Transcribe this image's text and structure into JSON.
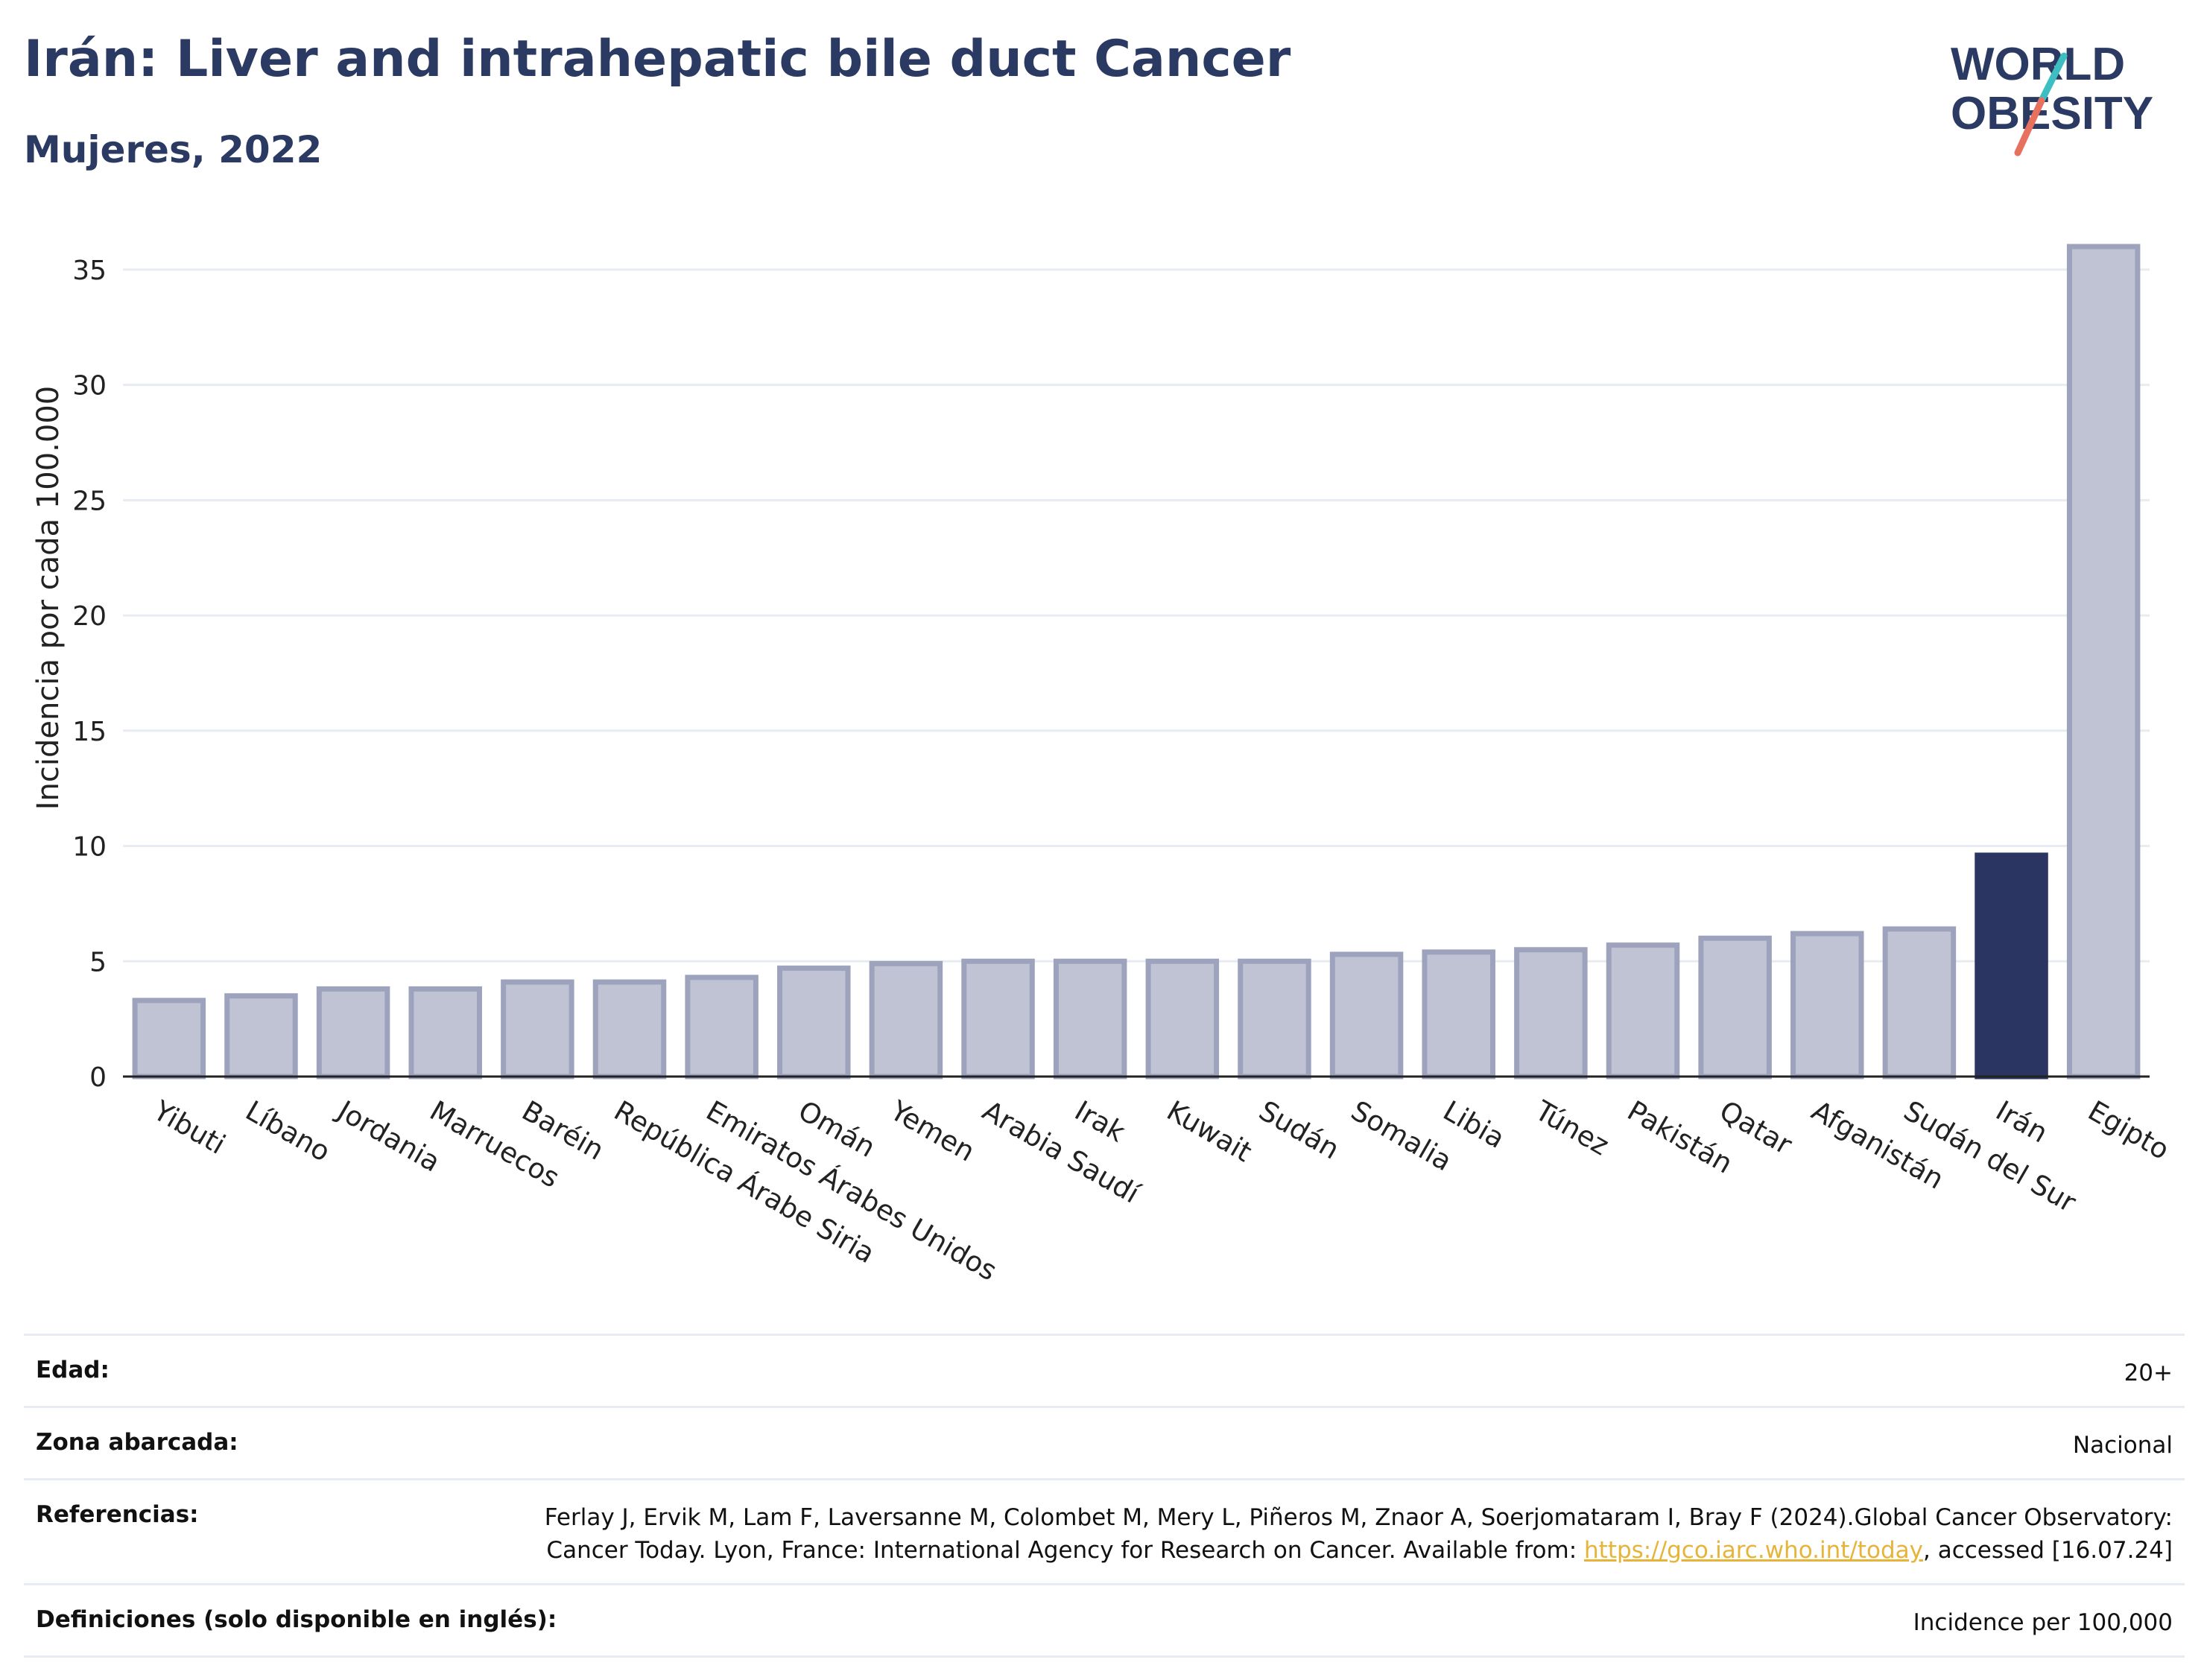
{
  "header": {
    "title": "Irán: Liver and intrahepatic bile duct Cancer",
    "subtitle": "Mujeres, 2022"
  },
  "logo": {
    "line1": "WORLD",
    "line2": "OBESITY",
    "colors": {
      "text": "#2b3a63",
      "slash_top": "#3dbfc1",
      "slash_bottom": "#e8705f"
    }
  },
  "colors": {
    "bar_fill": "#c0c3d3",
    "bar_stroke": "#9ea3bd",
    "highlight": "#2b3561",
    "grid": "#e6ecf2",
    "axis": "#222222"
  },
  "chart_data": {
    "type": "bar",
    "title": "",
    "xlabel": "",
    "ylabel": "Incidencia por cada 100.000",
    "ylim": [
      0,
      37
    ],
    "yticks": [
      0,
      5,
      10,
      15,
      20,
      25,
      30,
      35
    ],
    "grid": true,
    "highlight": "Irán",
    "categories": [
      "Yibuti",
      "Líbano",
      "Jordania",
      "Marruecos",
      "Baréin",
      "República Árabe Siria",
      "Emiratos Árabes Unidos",
      "Omán",
      "Yemen",
      "Arabia Saudí",
      "Irak",
      "Kuwait",
      "Sudán",
      "Somalia",
      "Libia",
      "Túnez",
      "Pakistán",
      "Qatar",
      "Afganistán",
      "Sudán del Sur",
      "Irán",
      "Egipto"
    ],
    "values": [
      3.3,
      3.5,
      3.8,
      3.8,
      4.1,
      4.1,
      4.3,
      4.7,
      4.9,
      5.0,
      5.0,
      5.0,
      5.0,
      5.3,
      5.4,
      5.5,
      5.7,
      6.0,
      6.2,
      6.4,
      9.6,
      36.0
    ]
  },
  "meta": {
    "rows": [
      {
        "label": "Edad:",
        "value": "20+"
      },
      {
        "label": "Zona abarcada:",
        "value": "Nacional"
      },
      {
        "label": "Referencias:",
        "value_before": "Ferlay J, Ervik M, Lam F, Laversanne M, Colombet M, Mery L, Piñeros M, Znaor A, Soerjomataram I, Bray F (2024).Global Cancer Observatory: Cancer Today. Lyon, France: International Agency for Research on Cancer. Available from: ",
        "link": "https://gco.iarc.who.int/today",
        "value_after": ", accessed [16.07.24]"
      },
      {
        "label": "Definiciones (solo disponible en inglés):",
        "value": "Incidence per 100,000"
      }
    ]
  }
}
